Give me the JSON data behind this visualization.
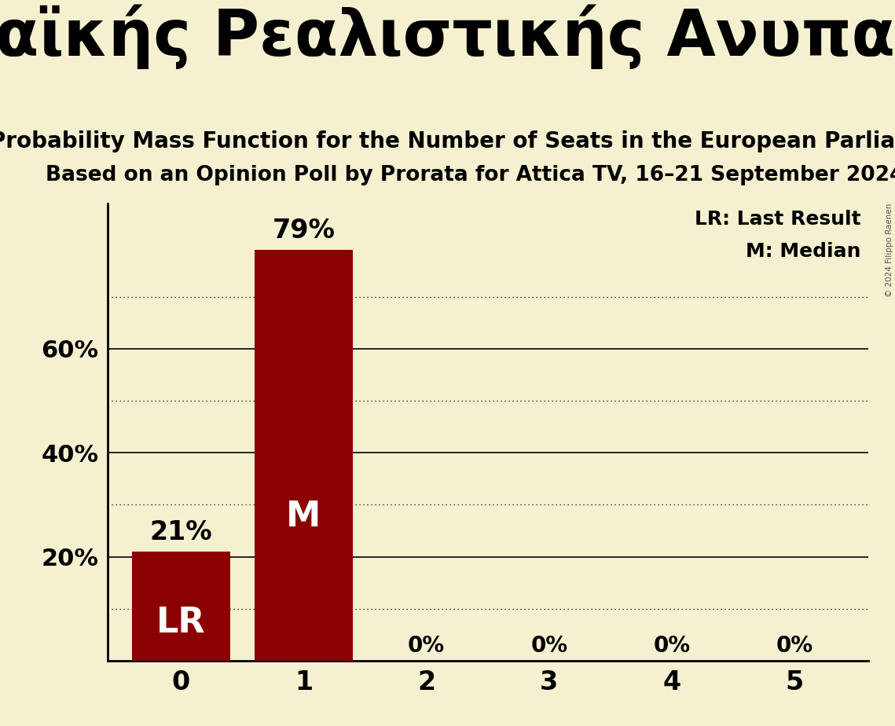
{
  "title_greek": "Μέτωπο Ευρωπαϊκής Ρεαλιστικής Ανυπακοής (GUE/NG",
  "subtitle1": "Probability Mass Function for the Number of Seats in the European Parliament",
  "subtitle2": "Based on an Opinion Poll by Prorata for Attica TV, 16–21 September 2024",
  "x_values": [
    0,
    1,
    2,
    3,
    4,
    5
  ],
  "y_values": [
    0.21,
    0.79,
    0.0,
    0.0,
    0.0,
    0.0
  ],
  "bar_color": "#8b0000",
  "background_color": "#f5f0d0",
  "text_color": "#000000",
  "bar_labels": [
    "21%",
    "79%",
    "0%",
    "0%",
    "0%",
    "0%"
  ],
  "bar_annotations": [
    {
      "bar_idx": 0,
      "text": "LR",
      "color": "white"
    },
    {
      "bar_idx": 1,
      "text": "M",
      "color": "white"
    }
  ],
  "solid_gridlines": [
    0.2,
    0.4,
    0.6
  ],
  "dotted_gridlines": [
    0.1,
    0.3,
    0.5,
    0.7
  ],
  "legend_lines": [
    "LR: Last Result",
    "M: Median"
  ],
  "copyright": "© 2024 Filippo Raenen",
  "ylim": [
    0,
    0.88
  ],
  "title_fontsize": 58,
  "subtitle1_fontsize": 20,
  "subtitle2_fontsize": 19,
  "ytick_fontsize": 22,
  "xtick_fontsize": 24,
  "bar_label_fontsize_large": 24,
  "bar_label_fontsize_zero": 20,
  "ann_fontsize": 32,
  "legend_fontsize": 18
}
